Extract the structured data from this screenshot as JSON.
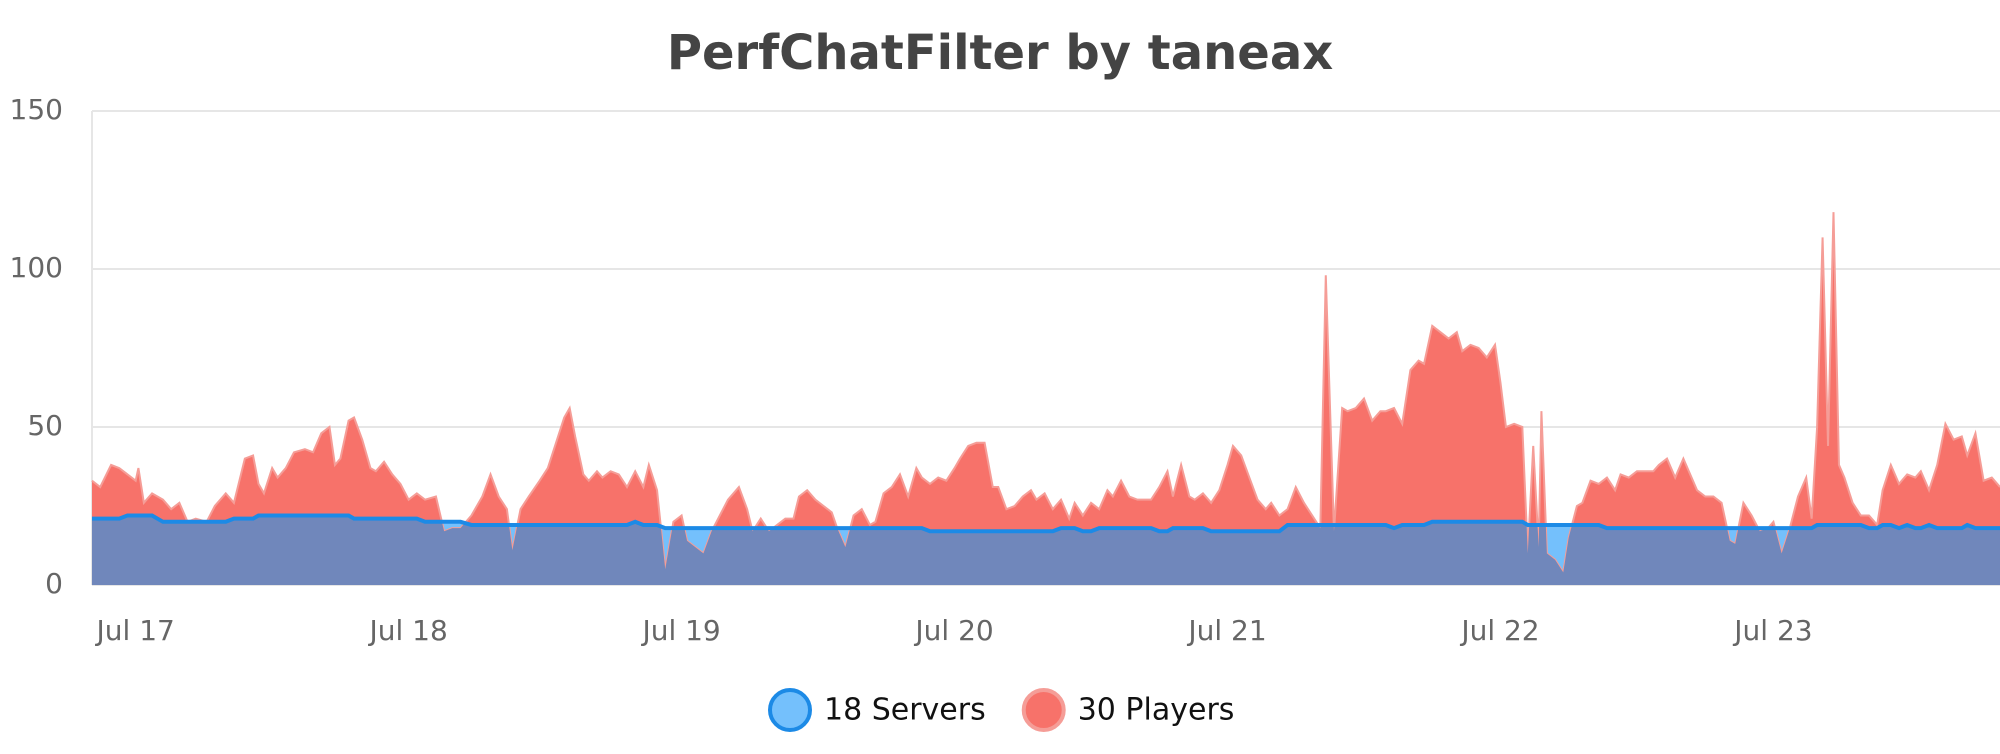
{
  "chart_data": {
    "type": "area",
    "title": "PerfChatFilter by taneax",
    "x": [
      -0.16,
      -0.13,
      -0.09,
      -0.06,
      -0.03,
      0.0,
      0.01,
      0.03,
      0.06,
      0.1,
      0.13,
      0.16,
      0.19,
      0.22,
      0.26,
      0.29,
      0.33,
      0.36,
      0.4,
      0.43,
      0.45,
      0.47,
      0.5,
      0.52,
      0.55,
      0.58,
      0.62,
      0.65,
      0.68,
      0.71,
      0.73,
      0.75,
      0.78,
      0.8,
      0.83,
      0.86,
      0.88,
      0.91,
      0.94,
      0.97,
      1.0,
      1.03,
      1.06,
      1.1,
      1.13,
      1.16,
      1.19,
      1.23,
      1.27,
      1.3,
      1.33,
      1.36,
      1.38,
      1.41,
      1.44,
      1.48,
      1.51,
      1.54,
      1.57,
      1.59,
      1.61,
      1.64,
      1.66,
      1.69,
      1.71,
      1.74,
      1.77,
      1.8,
      1.83,
      1.86,
      1.88,
      1.91,
      1.94,
      1.97,
      2.0,
      2.02,
      2.05,
      2.08,
      2.11,
      2.14,
      2.17,
      2.21,
      2.24,
      2.26,
      2.29,
      2.32,
      2.35,
      2.38,
      2.41,
      2.43,
      2.46,
      2.49,
      2.52,
      2.55,
      2.57,
      2.6,
      2.63,
      2.66,
      2.69,
      2.71,
      2.74,
      2.77,
      2.8,
      2.83,
      2.86,
      2.88,
      2.91,
      2.94,
      2.97,
      3.0,
      3.02,
      3.05,
      3.08,
      3.11,
      3.14,
      3.16,
      3.19,
      3.22,
      3.25,
      3.28,
      3.3,
      3.33,
      3.36,
      3.39,
      3.42,
      3.44,
      3.47,
      3.5,
      3.53,
      3.56,
      3.58,
      3.61,
      3.64,
      3.67,
      3.7,
      3.72,
      3.75,
      3.78,
      3.8,
      3.83,
      3.86,
      3.88,
      3.91,
      3.94,
      3.97,
      4.0,
      4.02,
      4.05,
      4.08,
      4.11,
      4.14,
      4.16,
      4.19,
      4.22,
      4.25,
      4.28,
      4.31,
      4.34,
      4.36,
      4.39,
      4.42,
      4.44,
      4.47,
      4.5,
      4.53,
      4.56,
      4.58,
      4.61,
      4.64,
      4.67,
      4.7,
      4.72,
      4.75,
      4.78,
      4.81,
      4.84,
      4.86,
      4.89,
      4.92,
      4.95,
      4.98,
      5.0,
      5.02,
      5.05,
      5.08,
      5.1,
      5.12,
      5.14,
      5.15,
      5.17,
      5.2,
      5.23,
      5.25,
      5.28,
      5.3,
      5.33,
      5.36,
      5.39,
      5.42,
      5.44,
      5.47,
      5.5,
      5.53,
      5.56,
      5.58,
      5.61,
      5.64,
      5.67,
      5.7,
      5.72,
      5.75,
      5.78,
      5.81,
      5.84,
      5.86,
      5.89,
      5.92,
      5.95,
      5.98,
      6.0,
      6.03,
      6.06,
      6.09,
      6.12,
      6.14,
      6.16,
      6.18,
      6.2,
      6.22,
      6.24,
      6.26,
      6.29,
      6.32,
      6.35,
      6.38,
      6.4,
      6.43,
      6.46,
      6.49,
      6.52,
      6.54,
      6.57,
      6.6,
      6.63,
      6.66,
      6.69,
      6.71,
      6.74,
      6.77,
      6.8,
      6.83
    ],
    "series": [
      {
        "name": "30 Players",
        "color": "#f7726a",
        "line_color": "#f59d97",
        "values": [
          33,
          31,
          38,
          37,
          35,
          33,
          37,
          26,
          29,
          27,
          24,
          26,
          20,
          21,
          20,
          25,
          29,
          26,
          40,
          41,
          32,
          29,
          37,
          34,
          37,
          42,
          43,
          42,
          48,
          50,
          38,
          40,
          52,
          53,
          46,
          37,
          36,
          39,
          35,
          32,
          27,
          29,
          27,
          28,
          17,
          18,
          18,
          22,
          28,
          35,
          28,
          24,
          11,
          24,
          28,
          33,
          37,
          45,
          53,
          56,
          47,
          35,
          33,
          36,
          34,
          36,
          35,
          31,
          36,
          31,
          38,
          30,
          5,
          20,
          22,
          14,
          12,
          10,
          17,
          22,
          27,
          31,
          24,
          17,
          21,
          17,
          19,
          21,
          21,
          28,
          30,
          27,
          25,
          23,
          18,
          12,
          22,
          24,
          19,
          20,
          29,
          31,
          35,
          28,
          37,
          34,
          32,
          34,
          33,
          37,
          40,
          44,
          45,
          45,
          31,
          31,
          24,
          25,
          28,
          30,
          27,
          29,
          24,
          27,
          21,
          26,
          22,
          26,
          24,
          30,
          28,
          33,
          28,
          27,
          27,
          27,
          31,
          36,
          28,
          38,
          28,
          27,
          29,
          26,
          30,
          38,
          44,
          41,
          34,
          27,
          24,
          26,
          22,
          24,
          31,
          26,
          22,
          18,
          98,
          17,
          56,
          55,
          56,
          59,
          52,
          55,
          55,
          56,
          51,
          68,
          71,
          70,
          82,
          80,
          78,
          80,
          74,
          76,
          75,
          72,
          76,
          64,
          50,
          51,
          50,
          10,
          44,
          12,
          55,
          10,
          8,
          4,
          15,
          25,
          26,
          33,
          32,
          34,
          30,
          35,
          34,
          36,
          36,
          36,
          38,
          40,
          34,
          40,
          34,
          30,
          28,
          28,
          26,
          14,
          13,
          26,
          22,
          17,
          18,
          20,
          10,
          18,
          28,
          34,
          21,
          50,
          110,
          44,
          118,
          38,
          34,
          26,
          22,
          22,
          19,
          30,
          38,
          32,
          35,
          34,
          36,
          30,
          38,
          51,
          46,
          47,
          41,
          48,
          33,
          34,
          31
        ]
      },
      {
        "name": "18 Servers",
        "color": "#74c0fc",
        "line_color": "#1c8ae6",
        "values": [
          21,
          21,
          21,
          21,
          22,
          22,
          22,
          22,
          22,
          20,
          20,
          20,
          20,
          20,
          20,
          20,
          20,
          21,
          21,
          21,
          22,
          22,
          22,
          22,
          22,
          22,
          22,
          22,
          22,
          22,
          22,
          22,
          22,
          21,
          21,
          21,
          21,
          21,
          21,
          21,
          21,
          21,
          20,
          20,
          20,
          20,
          20,
          19,
          19,
          19,
          19,
          19,
          19,
          19,
          19,
          19,
          19,
          19,
          19,
          19,
          19,
          19,
          19,
          19,
          19,
          19,
          19,
          19,
          20,
          19,
          19,
          19,
          18,
          18,
          18,
          18,
          18,
          18,
          18,
          18,
          18,
          18,
          18,
          18,
          18,
          18,
          18,
          18,
          18,
          18,
          18,
          18,
          18,
          18,
          18,
          18,
          18,
          18,
          18,
          18,
          18,
          18,
          18,
          18,
          18,
          18,
          17,
          17,
          17,
          17,
          17,
          17,
          17,
          17,
          17,
          17,
          17,
          17,
          17,
          17,
          17,
          17,
          17,
          18,
          18,
          18,
          17,
          17,
          18,
          18,
          18,
          18,
          18,
          18,
          18,
          18,
          17,
          17,
          18,
          18,
          18,
          18,
          18,
          17,
          17,
          17,
          17,
          17,
          17,
          17,
          17,
          17,
          17,
          19,
          19,
          19,
          19,
          19,
          19,
          19,
          19,
          19,
          19,
          19,
          19,
          19,
          19,
          18,
          19,
          19,
          19,
          19,
          20,
          20,
          20,
          20,
          20,
          20,
          20,
          20,
          20,
          20,
          20,
          20,
          20,
          19,
          19,
          19,
          19,
          19,
          19,
          19,
          19,
          19,
          19,
          19,
          19,
          18,
          18,
          18,
          18,
          18,
          18,
          18,
          18,
          18,
          18,
          18,
          18,
          18,
          18,
          18,
          18,
          18,
          18,
          18,
          18,
          18,
          18,
          18,
          18,
          18,
          18,
          18,
          18,
          19,
          19,
          19,
          19,
          19,
          19,
          19,
          19,
          18,
          18,
          19,
          19,
          18,
          19,
          18,
          18,
          19,
          18,
          18,
          18,
          18,
          19,
          18,
          18,
          18,
          18
        ]
      }
    ],
    "overlap_color": "#7087bb",
    "legend_order": [
      1,
      0
    ],
    "xlim": [
      -0.16,
      6.83
    ],
    "xticks": [
      {
        "value": 0,
        "label": "Jul 17"
      },
      {
        "value": 1,
        "label": "Jul 18"
      },
      {
        "value": 2,
        "label": "Jul 19"
      },
      {
        "value": 3,
        "label": "Jul 20"
      },
      {
        "value": 4,
        "label": "Jul 21"
      },
      {
        "value": 5,
        "label": "Jul 22"
      },
      {
        "value": 6,
        "label": "Jul 23"
      }
    ],
    "ylim": [
      0,
      150
    ],
    "yticks": [
      0,
      50,
      100,
      150
    ],
    "grid": true
  }
}
